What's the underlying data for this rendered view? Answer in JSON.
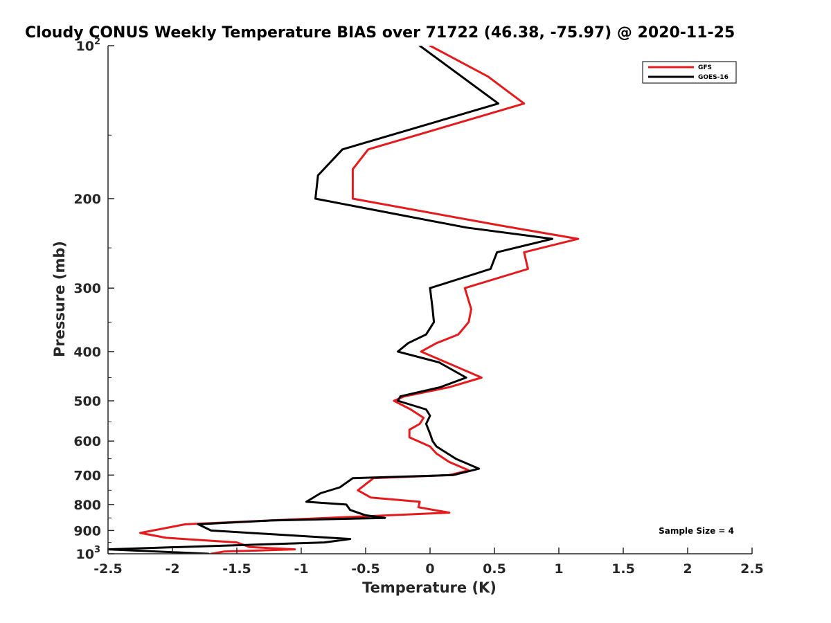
{
  "chart_data": {
    "type": "line",
    "title": "Cloudy CONUS Weekly Temperature BIAS over 71722 (46.38, -75.97) @ 2020-11-25",
    "xlabel": "Temperature (K)",
    "ylabel": "Pressure (mb)",
    "xlim": [
      -2.5,
      2.5
    ],
    "ylim": [
      100,
      1000
    ],
    "y_scale": "log",
    "y_reversed": true,
    "grid": false,
    "legend_position": "top-right",
    "x_tick_labels": [
      "-2.5",
      "-2",
      "-1.5",
      "-1",
      "-0.5",
      "0",
      "0.5",
      "1",
      "1.5",
      "2",
      "2.5"
    ],
    "x_ticks": [
      -2.5,
      -2,
      -1.5,
      -1,
      -0.5,
      0,
      0.5,
      1,
      1.5,
      2,
      2.5
    ],
    "y_ticks": [
      {
        "value": 100,
        "label": "10",
        "sup": "2"
      },
      {
        "value": 200,
        "label": "200"
      },
      {
        "value": 300,
        "label": "300"
      },
      {
        "value": 400,
        "label": "400"
      },
      {
        "value": 500,
        "label": "500"
      },
      {
        "value": 600,
        "label": "600"
      },
      {
        "value": 700,
        "label": "700"
      },
      {
        "value": 800,
        "label": "800"
      },
      {
        "value": 900,
        "label": "900"
      },
      {
        "value": 1000,
        "label": "10",
        "sup": "3"
      }
    ],
    "annotation": "Sample Size = 4",
    "series": [
      {
        "name": "GFS",
        "color": "#e41a1c",
        "points": [
          [
            0.0,
            100
          ],
          [
            0.45,
            115
          ],
          [
            0.73,
            130
          ],
          [
            -0.48,
            160
          ],
          [
            -0.6,
            175
          ],
          [
            -0.6,
            200
          ],
          [
            0.55,
            226
          ],
          [
            1.15,
            240
          ],
          [
            0.73,
            255
          ],
          [
            0.76,
            275
          ],
          [
            0.27,
            300
          ],
          [
            0.32,
            330
          ],
          [
            0.3,
            350
          ],
          [
            0.22,
            370
          ],
          [
            0.05,
            385
          ],
          [
            -0.07,
            400
          ],
          [
            0.22,
            430
          ],
          [
            0.4,
            450
          ],
          [
            0.15,
            470
          ],
          [
            -0.2,
            490
          ],
          [
            -0.28,
            500
          ],
          [
            -0.15,
            520
          ],
          [
            -0.05,
            540
          ],
          [
            -0.08,
            555
          ],
          [
            -0.16,
            570
          ],
          [
            -0.16,
            590
          ],
          [
            0.0,
            615
          ],
          [
            0.05,
            635
          ],
          [
            0.15,
            660
          ],
          [
            0.3,
            685
          ],
          [
            0.15,
            700
          ],
          [
            -0.44,
            710
          ],
          [
            -0.56,
            750
          ],
          [
            -0.46,
            775
          ],
          [
            -0.08,
            790
          ],
          [
            -0.09,
            810
          ],
          [
            0.15,
            830
          ],
          [
            -1.25,
            860
          ],
          [
            -1.9,
            875
          ],
          [
            -2.25,
            910
          ],
          [
            -2.05,
            930
          ],
          [
            -1.5,
            950
          ],
          [
            -1.4,
            970
          ],
          [
            -1.05,
            980
          ],
          [
            -1.6,
            990
          ],
          [
            -1.7,
            1000
          ]
        ]
      },
      {
        "name": "GOES-16",
        "color": "#000000",
        "points": [
          [
            -0.08,
            100
          ],
          [
            0.53,
            130
          ],
          [
            -0.68,
            160
          ],
          [
            -0.87,
            180
          ],
          [
            -0.89,
            200
          ],
          [
            0.28,
            228
          ],
          [
            0.95,
            240
          ],
          [
            0.52,
            255
          ],
          [
            0.47,
            275
          ],
          [
            0.0,
            300
          ],
          [
            0.02,
            330
          ],
          [
            0.03,
            350
          ],
          [
            -0.03,
            370
          ],
          [
            -0.17,
            385
          ],
          [
            -0.25,
            400
          ],
          [
            0.07,
            420
          ],
          [
            0.28,
            450
          ],
          [
            0.08,
            470
          ],
          [
            -0.23,
            490
          ],
          [
            -0.25,
            500
          ],
          [
            -0.03,
            520
          ],
          [
            0.0,
            535
          ],
          [
            -0.03,
            555
          ],
          [
            0.0,
            580
          ],
          [
            0.02,
            600
          ],
          [
            0.05,
            615
          ],
          [
            0.2,
            650
          ],
          [
            0.38,
            680
          ],
          [
            0.18,
            700
          ],
          [
            -0.6,
            710
          ],
          [
            -0.7,
            740
          ],
          [
            -0.85,
            760
          ],
          [
            -0.96,
            790
          ],
          [
            -0.65,
            800
          ],
          [
            -0.62,
            820
          ],
          [
            -0.5,
            840
          ],
          [
            -0.35,
            850
          ],
          [
            -1.23,
            860
          ],
          [
            -1.8,
            875
          ],
          [
            -1.7,
            900
          ],
          [
            -0.62,
            935
          ],
          [
            -0.82,
            950
          ],
          [
            -2.5,
            980
          ],
          [
            -1.72,
            1000
          ]
        ]
      }
    ]
  }
}
